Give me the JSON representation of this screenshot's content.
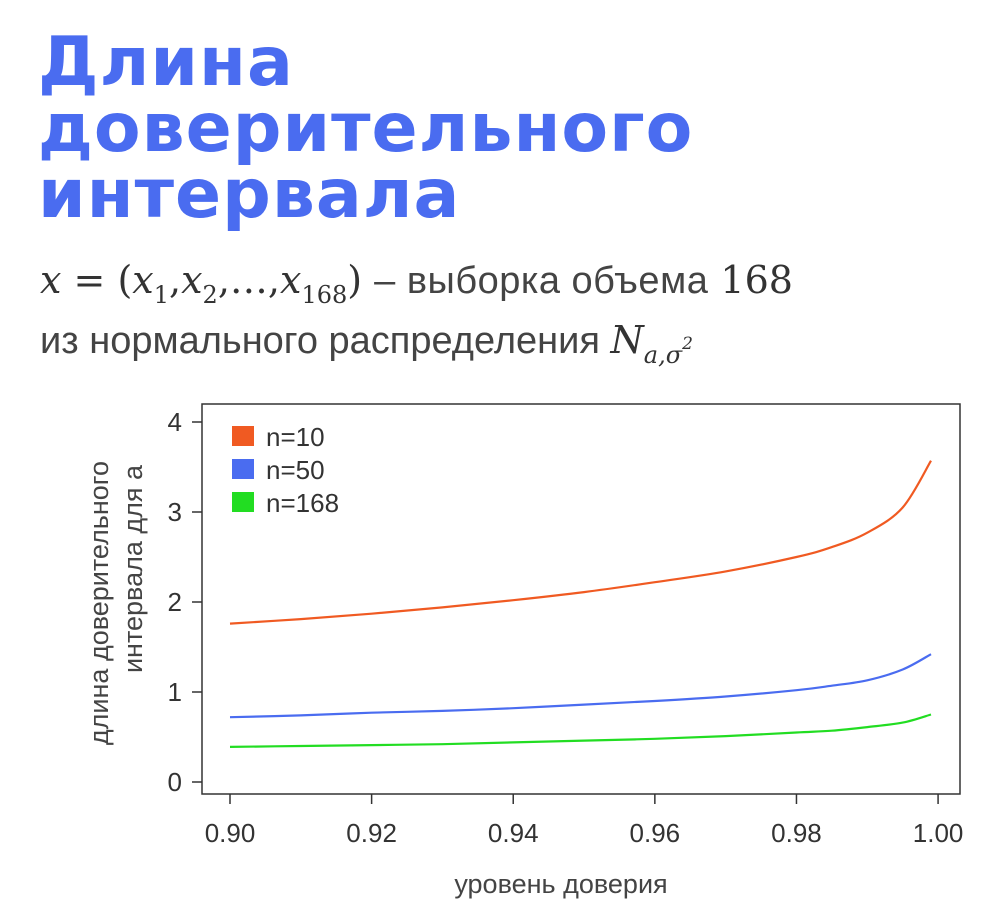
{
  "title_lines": [
    "Длина",
    "доверительного",
    "интервала"
  ],
  "formula": {
    "lhs": "x",
    "eq": "=",
    "open": "(",
    "x1": "x",
    "x1_sub": "1",
    "x2": "x",
    "x2_sub": "2",
    "dots": ",…,",
    "xn": "x",
    "xn_sub": "168",
    "close": ")",
    "dash_text": "– выборка объема",
    "n": "168",
    "line2_text": "из нормального распределения",
    "dist": "N",
    "dist_sub": "a,σ",
    "dist_sup": "2"
  },
  "chart_data": {
    "type": "line",
    "xlabel": "уровень доверия",
    "ylabel_lines": [
      "длина доверительного",
      "интервала для a"
    ],
    "xlim": [
      0.9,
      0.999
    ],
    "ylim": [
      0,
      4
    ],
    "xticks": [
      "0.90",
      "0.92",
      "0.94",
      "0.96",
      "0.98",
      "1.00"
    ],
    "xtick_values": [
      0.9,
      0.92,
      0.94,
      0.96,
      0.98,
      1.0
    ],
    "yticks": [
      "0",
      "1",
      "2",
      "3",
      "4"
    ],
    "ytick_values": [
      0,
      1,
      2,
      3,
      4
    ],
    "legend_position": "top-left",
    "x": [
      0.9,
      0.91,
      0.92,
      0.93,
      0.94,
      0.95,
      0.96,
      0.97,
      0.98,
      0.985,
      0.99,
      0.995,
      0.999
    ],
    "series": [
      {
        "name": "n=10",
        "color": "#f05a22",
        "values": [
          1.76,
          1.81,
          1.87,
          1.94,
          2.02,
          2.11,
          2.22,
          2.34,
          2.5,
          2.61,
          2.77,
          3.05,
          3.57
        ]
      },
      {
        "name": "n=50",
        "color": "#4a6cf0",
        "values": [
          0.72,
          0.74,
          0.77,
          0.79,
          0.82,
          0.86,
          0.9,
          0.95,
          1.02,
          1.07,
          1.13,
          1.25,
          1.42
        ]
      },
      {
        "name": "n=168",
        "color": "#22dd22",
        "values": [
          0.39,
          0.4,
          0.41,
          0.42,
          0.44,
          0.46,
          0.48,
          0.51,
          0.55,
          0.57,
          0.61,
          0.66,
          0.75
        ]
      }
    ]
  }
}
